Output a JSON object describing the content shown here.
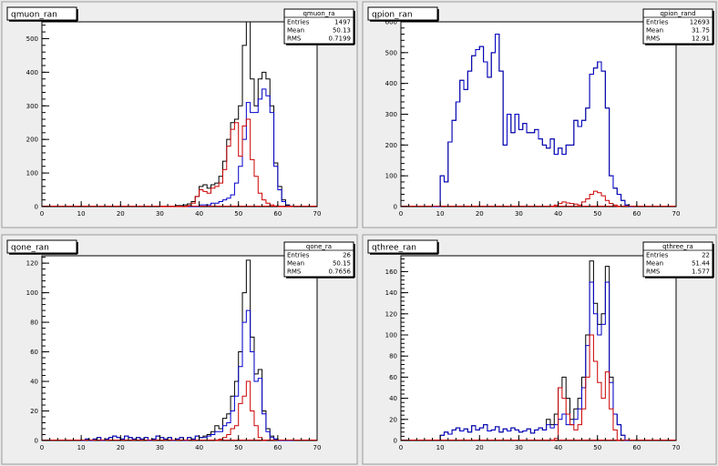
{
  "colors": {
    "black": "#000000",
    "blue": "#0000cc",
    "red": "#cc0000"
  },
  "chart_data": [
    {
      "type": "line",
      "title": "qmuon_ran",
      "xlim": [
        0,
        70
      ],
      "ylim": [
        0,
        550
      ],
      "xticks": [
        0,
        10,
        20,
        30,
        40,
        50,
        60,
        70
      ],
      "yticks": [
        0,
        100,
        200,
        300,
        400,
        500
      ],
      "stats": {
        "name": "qmuon_ra",
        "rows": [
          [
            "Entries",
            "1497"
          ],
          [
            "Mean",
            "50.13"
          ],
          [
            "RMS",
            "0.7199"
          ]
        ]
      },
      "series": [
        {
          "color": "black",
          "x": [
            30,
            31,
            32,
            33,
            34,
            35,
            36,
            37,
            38,
            39,
            40,
            41,
            42,
            43,
            44,
            45,
            46,
            47,
            48,
            49,
            50,
            51,
            52,
            53,
            54,
            55,
            56,
            57,
            58,
            59,
            60,
            61,
            62,
            63
          ],
          "values": [
            0,
            0,
            0,
            0,
            3,
            3,
            5,
            8,
            15,
            30,
            60,
            65,
            55,
            65,
            70,
            90,
            135,
            200,
            250,
            260,
            300,
            480,
            550,
            380,
            300,
            380,
            400,
            380,
            300,
            130,
            60,
            20,
            5,
            0
          ]
        },
        {
          "color": "blue",
          "x": [
            30,
            31,
            32,
            33,
            34,
            35,
            36,
            37,
            38,
            39,
            40,
            41,
            42,
            43,
            44,
            45,
            46,
            47,
            48,
            49,
            50,
            51,
            52,
            53,
            54,
            55,
            56,
            57,
            58,
            59,
            60,
            61,
            62,
            63
          ],
          "values": [
            0,
            0,
            0,
            0,
            0,
            0,
            0,
            0,
            0,
            0,
            5,
            5,
            5,
            10,
            10,
            15,
            20,
            25,
            35,
            70,
            120,
            200,
            310,
            280,
            280,
            320,
            350,
            330,
            280,
            120,
            50,
            15,
            3,
            0
          ]
        },
        {
          "color": "red",
          "x": [
            30,
            31,
            32,
            33,
            34,
            35,
            36,
            37,
            38,
            39,
            40,
            41,
            42,
            43,
            44,
            45,
            46,
            47,
            48,
            49,
            50,
            51,
            52,
            53,
            54,
            55,
            56,
            57,
            58,
            59,
            60,
            61,
            62,
            63
          ],
          "values": [
            0,
            0,
            0,
            0,
            0,
            0,
            0,
            3,
            10,
            30,
            50,
            45,
            40,
            55,
            60,
            70,
            110,
            180,
            230,
            250,
            150,
            240,
            260,
            140,
            90,
            40,
            20,
            10,
            5,
            2,
            0,
            0,
            0,
            0
          ]
        }
      ]
    },
    {
      "type": "line",
      "title": "qpion_ran",
      "xlim": [
        0,
        70
      ],
      "ylim": [
        0,
        600
      ],
      "xticks": [
        0,
        10,
        20,
        30,
        40,
        50,
        60,
        70
      ],
      "yticks": [
        0,
        100,
        200,
        300,
        400,
        500,
        600
      ],
      "stats": {
        "name": "qpion_rand",
        "rows": [
          [
            "Entries",
            "12693"
          ],
          [
            "Mean",
            "31.75"
          ],
          [
            "RMS",
            "12.91"
          ]
        ]
      },
      "series": [
        {
          "color": "black",
          "x": [
            8,
            9,
            10,
            11,
            12,
            13,
            14,
            15,
            16,
            17,
            18,
            19,
            20,
            21,
            22,
            23,
            24,
            25,
            26,
            27,
            28,
            29,
            30,
            31,
            32,
            33,
            34,
            35,
            36,
            37,
            38,
            39,
            40,
            41,
            42,
            43,
            44,
            45,
            46,
            47,
            48,
            49,
            50,
            51,
            52,
            53,
            54,
            55,
            56,
            57,
            58
          ],
          "values": [
            0,
            0,
            100,
            80,
            210,
            280,
            340,
            410,
            380,
            440,
            490,
            510,
            520,
            470,
            420,
            500,
            560,
            440,
            200,
            300,
            240,
            300,
            250,
            270,
            240,
            240,
            250,
            220,
            200,
            190,
            220,
            170,
            190,
            170,
            200,
            200,
            280,
            260,
            280,
            320,
            430,
            450,
            470,
            440,
            320,
            100,
            60,
            40,
            20,
            5,
            0
          ]
        },
        {
          "color": "blue",
          "x": [
            8,
            9,
            10,
            11,
            12,
            13,
            14,
            15,
            16,
            17,
            18,
            19,
            20,
            21,
            22,
            23,
            24,
            25,
            26,
            27,
            28,
            29,
            30,
            31,
            32,
            33,
            34,
            35,
            36,
            37,
            38,
            39,
            40,
            41,
            42,
            43,
            44,
            45,
            46,
            47,
            48,
            49,
            50,
            51,
            52,
            53,
            54,
            55,
            56,
            57,
            58
          ],
          "values": [
            0,
            0,
            100,
            80,
            210,
            280,
            340,
            410,
            380,
            440,
            490,
            510,
            520,
            470,
            420,
            500,
            560,
            440,
            200,
            300,
            240,
            300,
            250,
            270,
            240,
            240,
            250,
            220,
            200,
            190,
            220,
            170,
            190,
            170,
            200,
            200,
            280,
            260,
            280,
            320,
            430,
            450,
            470,
            440,
            320,
            100,
            60,
            40,
            20,
            5,
            0
          ]
        },
        {
          "color": "red",
          "x": [
            38,
            39,
            40,
            41,
            42,
            43,
            44,
            45,
            46,
            47,
            48,
            49,
            50,
            51,
            52,
            53,
            54,
            55
          ],
          "values": [
            0,
            5,
            10,
            15,
            12,
            10,
            8,
            5,
            15,
            25,
            40,
            50,
            45,
            35,
            20,
            10,
            5,
            0
          ]
        }
      ]
    },
    {
      "type": "line",
      "title": "qone_ran",
      "xlim": [
        0,
        70
      ],
      "ylim": [
        0,
        125
      ],
      "xticks": [
        0,
        10,
        20,
        30,
        40,
        50,
        60,
        70
      ],
      "yticks": [
        0,
        20,
        40,
        60,
        80,
        100,
        120
      ],
      "stats": {
        "name": "qone_ra",
        "rows": [
          [
            "Entries",
            "26"
          ],
          [
            "Mean",
            "50.15"
          ],
          [
            "RMS",
            "0.7656"
          ]
        ]
      },
      "series": [
        {
          "color": "black",
          "x": [
            10,
            11,
            12,
            13,
            14,
            15,
            16,
            17,
            18,
            19,
            20,
            21,
            22,
            23,
            24,
            25,
            26,
            27,
            28,
            29,
            30,
            31,
            32,
            33,
            34,
            35,
            36,
            37,
            38,
            39,
            40,
            41,
            42,
            43,
            44,
            45,
            46,
            47,
            48,
            49,
            50,
            51,
            52,
            53,
            54,
            55,
            56,
            57,
            58,
            59,
            60,
            61,
            62,
            63
          ],
          "values": [
            0,
            1,
            0,
            1,
            2,
            0,
            1,
            2,
            3,
            2,
            1,
            3,
            2,
            1,
            2,
            1,
            2,
            0,
            1,
            3,
            2,
            1,
            2,
            0,
            1,
            2,
            0,
            2,
            1,
            3,
            2,
            3,
            4,
            6,
            10,
            8,
            15,
            18,
            30,
            40,
            60,
            100,
            122,
            70,
            45,
            48,
            20,
            8,
            3,
            1,
            0,
            0,
            0,
            0
          ]
        },
        {
          "color": "blue",
          "x": [
            10,
            11,
            12,
            13,
            14,
            15,
            16,
            17,
            18,
            19,
            20,
            21,
            22,
            23,
            24,
            25,
            26,
            27,
            28,
            29,
            30,
            31,
            32,
            33,
            34,
            35,
            36,
            37,
            38,
            39,
            40,
            41,
            42,
            43,
            44,
            45,
            46,
            47,
            48,
            49,
            50,
            51,
            52,
            53,
            54,
            55,
            56,
            57,
            58,
            59,
            60,
            61,
            62,
            63
          ],
          "values": [
            0,
            1,
            0,
            1,
            2,
            0,
            1,
            2,
            3,
            2,
            1,
            3,
            2,
            1,
            2,
            1,
            2,
            0,
            1,
            3,
            2,
            1,
            2,
            0,
            1,
            2,
            0,
            2,
            1,
            3,
            2,
            2,
            3,
            4,
            6,
            6,
            10,
            12,
            20,
            30,
            50,
            80,
            88,
            60,
            40,
            42,
            18,
            6,
            2,
            1,
            0,
            0,
            0,
            0
          ]
        },
        {
          "color": "red",
          "x": [
            44,
            45,
            46,
            47,
            48,
            49,
            50,
            51,
            52,
            53,
            54,
            55,
            56
          ],
          "values": [
            0,
            1,
            2,
            4,
            8,
            10,
            25,
            30,
            40,
            20,
            10,
            2,
            0
          ]
        }
      ]
    },
    {
      "type": "line",
      "title": "qthree_ran",
      "xlim": [
        0,
        70
      ],
      "ylim": [
        0,
        175
      ],
      "xticks": [
        0,
        10,
        20,
        30,
        40,
        50,
        60,
        70
      ],
      "yticks": [
        0,
        20,
        40,
        60,
        80,
        100,
        120,
        140,
        160
      ],
      "stats": {
        "name": "qthree_ra",
        "rows": [
          [
            "Entries",
            "22"
          ],
          [
            "Mean",
            "51.44"
          ],
          [
            "RMS",
            "1.577"
          ]
        ]
      },
      "series": [
        {
          "color": "black",
          "x": [
            10,
            11,
            12,
            13,
            14,
            15,
            16,
            17,
            18,
            19,
            20,
            21,
            22,
            23,
            24,
            25,
            26,
            27,
            28,
            29,
            30,
            31,
            32,
            33,
            34,
            35,
            36,
            37,
            38,
            39,
            40,
            41,
            42,
            43,
            44,
            45,
            46,
            47,
            48,
            49,
            50,
            51,
            52,
            53,
            54,
            55,
            56,
            57
          ],
          "values": [
            5,
            8,
            6,
            10,
            12,
            9,
            11,
            8,
            14,
            10,
            12,
            15,
            9,
            10,
            13,
            8,
            11,
            9,
            12,
            10,
            8,
            9,
            11,
            7,
            10,
            12,
            10,
            20,
            15,
            25,
            50,
            60,
            40,
            20,
            30,
            40,
            60,
            100,
            170,
            130,
            110,
            120,
            165,
            60,
            25,
            15,
            5,
            0
          ]
        },
        {
          "color": "blue",
          "x": [
            10,
            11,
            12,
            13,
            14,
            15,
            16,
            17,
            18,
            19,
            20,
            21,
            22,
            23,
            24,
            25,
            26,
            27,
            28,
            29,
            30,
            31,
            32,
            33,
            34,
            35,
            36,
            37,
            38,
            39,
            40,
            41,
            42,
            43,
            44,
            45,
            46,
            47,
            48,
            49,
            50,
            51,
            52,
            53,
            54,
            55,
            56,
            57
          ],
          "values": [
            5,
            8,
            6,
            10,
            12,
            9,
            11,
            8,
            14,
            10,
            12,
            15,
            9,
            10,
            13,
            8,
            11,
            9,
            12,
            10,
            8,
            9,
            11,
            7,
            10,
            12,
            10,
            15,
            12,
            15,
            20,
            25,
            15,
            15,
            20,
            30,
            50,
            90,
            150,
            120,
            100,
            110,
            150,
            55,
            25,
            15,
            5,
            0
          ]
        },
        {
          "color": "red",
          "x": [
            38,
            39,
            40,
            41,
            42,
            43,
            44,
            45,
            46,
            47,
            48,
            49,
            50,
            51,
            52,
            53,
            54,
            55
          ],
          "values": [
            0,
            2,
            50,
            40,
            25,
            15,
            10,
            15,
            30,
            60,
            100,
            75,
            55,
            40,
            65,
            30,
            10,
            0
          ]
        }
      ]
    }
  ]
}
